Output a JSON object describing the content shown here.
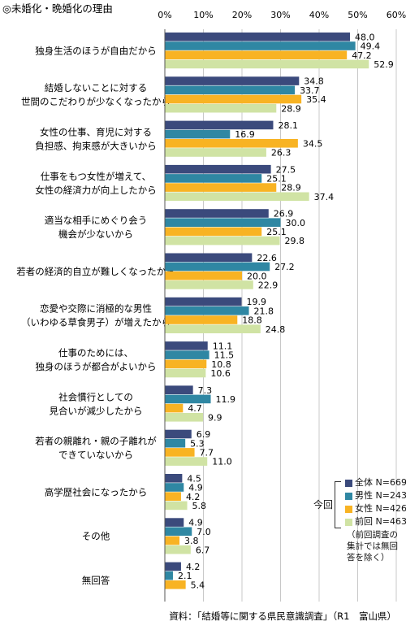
{
  "title": "◎未婚化・晩婚化の理由",
  "source": "資料：「結婚等に関する県民意識調査」（R1　富山県）",
  "colors": {
    "s0": "#3b4a7c",
    "s1": "#2f87a3",
    "s2": "#f8b323",
    "s3": "#d0e3a4"
  },
  "legend": {
    "group_label": "今回",
    "note": "（前回調査の集計では無回答を除く）"
  },
  "chart_data": {
    "type": "bar",
    "orientation": "horizontal",
    "xlim": [
      0,
      60
    ],
    "xticks": [
      "0%",
      "10%",
      "20%",
      "30%",
      "40%",
      "50%",
      "60%"
    ],
    "tick_values": [
      0,
      10,
      20,
      30,
      40,
      50,
      60
    ],
    "grid": true,
    "legend_position": "bottom-right",
    "categories": [
      [
        "独身生活のほうが自由だから"
      ],
      [
        "結婚しないことに対する",
        "世間のこだわりが少なくなったから"
      ],
      [
        "女性の仕事、育児に対する",
        "負担感、拘束感が大きいから"
      ],
      [
        "仕事をもつ女性が増えて、",
        "女性の経済力が向上したから"
      ],
      [
        "適当な相手にめぐり会う",
        "機会が少ないから"
      ],
      [
        "若者の経済的自立が難しくなったから"
      ],
      [
        "恋愛や交際に消極的な男性",
        "（いわゆる草食男子）が増えたから"
      ],
      [
        "仕事のためには、",
        "独身のほうが都合がよいから"
      ],
      [
        "社会慣行としての",
        "見合いが減少したから"
      ],
      [
        "若者の親離れ・親の子離れが",
        "できていないから"
      ],
      [
        "高学歴社会になったから"
      ],
      [
        "その他"
      ],
      [
        "無回答"
      ]
    ],
    "series": [
      {
        "name": "全体 N=669",
        "values": [
          48.0,
          34.8,
          28.1,
          27.5,
          26.9,
          22.6,
          19.9,
          11.1,
          7.3,
          6.9,
          4.5,
          4.9,
          4.2
        ]
      },
      {
        "name": "男性 N=243",
        "values": [
          49.4,
          33.7,
          16.9,
          25.1,
          30.0,
          27.2,
          21.8,
          11.5,
          11.9,
          5.3,
          4.9,
          7.0,
          2.1
        ]
      },
      {
        "name": "女性 N=426",
        "values": [
          47.2,
          35.4,
          34.5,
          28.9,
          25.1,
          20.0,
          18.8,
          10.8,
          4.7,
          7.7,
          4.2,
          3.8,
          5.4
        ]
      },
      {
        "name": "前回 N=463",
        "values": [
          52.9,
          28.9,
          26.3,
          37.4,
          29.8,
          22.9,
          24.8,
          10.6,
          9.9,
          11.0,
          5.8,
          6.7,
          null
        ]
      }
    ]
  }
}
